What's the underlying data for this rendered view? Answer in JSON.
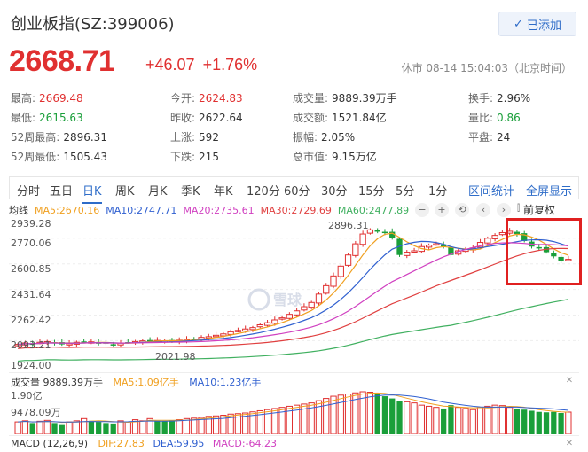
{
  "header": {
    "title": "创业板指(SZ:399006)",
    "follow_label": "已添加",
    "price": "2668.71",
    "change": "+46.07",
    "change_pct": "+1.76%",
    "status": "休市 08-14 15:04:03（北京时间）"
  },
  "stats": [
    {
      "label": "最高:",
      "value": "2669.48",
      "color": "red"
    },
    {
      "label": "今开:",
      "value": "2624.83",
      "color": "red"
    },
    {
      "label": "成交量:",
      "value": "9889.39万手",
      "color": "normal"
    },
    {
      "label": "换手:",
      "value": "2.96%",
      "color": "normal"
    },
    {
      "label": "最低:",
      "value": "2615.63",
      "color": "green"
    },
    {
      "label": "昨收:",
      "value": "2622.64",
      "color": "normal"
    },
    {
      "label": "成交额:",
      "value": "1521.84亿",
      "color": "normal"
    },
    {
      "label": "量比:",
      "value": "0.86",
      "color": "green"
    },
    {
      "label": "52周最高:",
      "value": "2896.31",
      "color": "normal"
    },
    {
      "label": "上涨:",
      "value": "592",
      "color": "normal"
    },
    {
      "label": "振幅:",
      "value": "2.05%",
      "color": "normal"
    },
    {
      "label": "平盘:",
      "value": "24",
      "color": "normal"
    },
    {
      "label": "52周最低:",
      "value": "1505.43",
      "color": "normal"
    },
    {
      "label": "下跌:",
      "value": "215",
      "color": "normal"
    },
    {
      "label": "总市值:",
      "value": "9.15万亿",
      "color": "normal"
    }
  ],
  "periods": [
    "分时",
    "五日",
    "日K",
    "周K",
    "月K",
    "季K",
    "年K",
    "120分",
    "60分",
    "30分",
    "15分",
    "5分",
    "1分"
  ],
  "active_period": "日K",
  "links": {
    "stats": "区间统计",
    "fullscreen": "全屏显示"
  },
  "ma_legend": {
    "title": "均线",
    "items": [
      {
        "text": "MA5:2670.16",
        "color": "#f0a020"
      },
      {
        "text": "MA10:2747.71",
        "color": "#3060d0"
      },
      {
        "text": "MA20:2735.61",
        "color": "#d040c0"
      },
      {
        "text": "MA30:2729.69",
        "color": "#e04040"
      },
      {
        "text": "MA60:2477.89",
        "color": "#40b060"
      }
    ]
  },
  "controls": {
    "fq": "前复权"
  },
  "colors": {
    "up": "#e03030",
    "down": "#1a9f3a",
    "link": "#2e6cc8"
  },
  "axis": {
    "y_labels": [
      "2939.28",
      "2770.06",
      "2600.85",
      "2431.64",
      "2262.42",
      "2093.21",
      "1924.00"
    ],
    "max_label": "2896.31",
    "min_label": "2021.98"
  },
  "volume": {
    "legend_title": "成交量 9889.39万手",
    "ma5": "MA5:1.09亿手",
    "ma10": "MA10:1.23亿手",
    "y_top": "1.90亿",
    "y_mid": "9478.09万"
  },
  "macd": {
    "title": "MACD (12,26,9)",
    "dif": "DIF:27.83",
    "dea": "DEA:59.95",
    "macd": "MACD:-64.23"
  },
  "chart_data": {
    "type": "candlestick",
    "title": "",
    "ylim": [
      1924.0,
      2939.28
    ],
    "close_series_estimated": [
      2060,
      2070,
      2065,
      2075,
      2080,
      2070,
      2060,
      2065,
      2075,
      2080,
      2078,
      2070,
      2065,
      2060,
      2070,
      2075,
      2080,
      2085,
      2090,
      2088,
      2085,
      2080,
      2090,
      2095,
      2100,
      2110,
      2115,
      2125,
      2135,
      2150,
      2160,
      2170,
      2180,
      2200,
      2215,
      2235,
      2250,
      2275,
      2300,
      2330,
      2360,
      2420,
      2480,
      2550,
      2620,
      2700,
      2780,
      2850,
      2880,
      2870,
      2860,
      2820,
      2700,
      2720,
      2730,
      2760,
      2770,
      2780,
      2760,
      2700,
      2730,
      2740,
      2750,
      2790,
      2820,
      2840,
      2860,
      2870,
      2850,
      2800,
      2760,
      2750,
      2720,
      2690,
      2660,
      2669
    ],
    "volume_series_estimated": [
      0.55,
      0.6,
      0.5,
      0.58,
      0.62,
      0.5,
      0.45,
      0.55,
      0.6,
      0.7,
      0.6,
      0.55,
      0.5,
      0.48,
      0.6,
      0.55,
      0.65,
      0.6,
      0.7,
      0.6,
      0.58,
      0.62,
      0.65,
      0.7,
      0.72,
      0.75,
      0.8,
      0.82,
      0.85,
      0.9,
      0.92,
      0.95,
      1.0,
      1.05,
      1.1,
      1.15,
      1.2,
      1.25,
      1.3,
      1.35,
      1.4,
      1.5,
      1.6,
      1.7,
      1.75,
      1.8,
      1.85,
      1.9,
      1.88,
      1.8,
      1.7,
      1.6,
      1.5,
      1.45,
      1.4,
      1.3,
      1.25,
      1.2,
      1.15,
      1.3,
      1.2,
      1.15,
      1.1,
      1.2,
      1.25,
      1.3,
      1.28,
      1.2,
      1.15,
      1.1,
      1.05,
      1.0,
      0.98,
      1.0,
      0.95,
      0.99
    ]
  }
}
